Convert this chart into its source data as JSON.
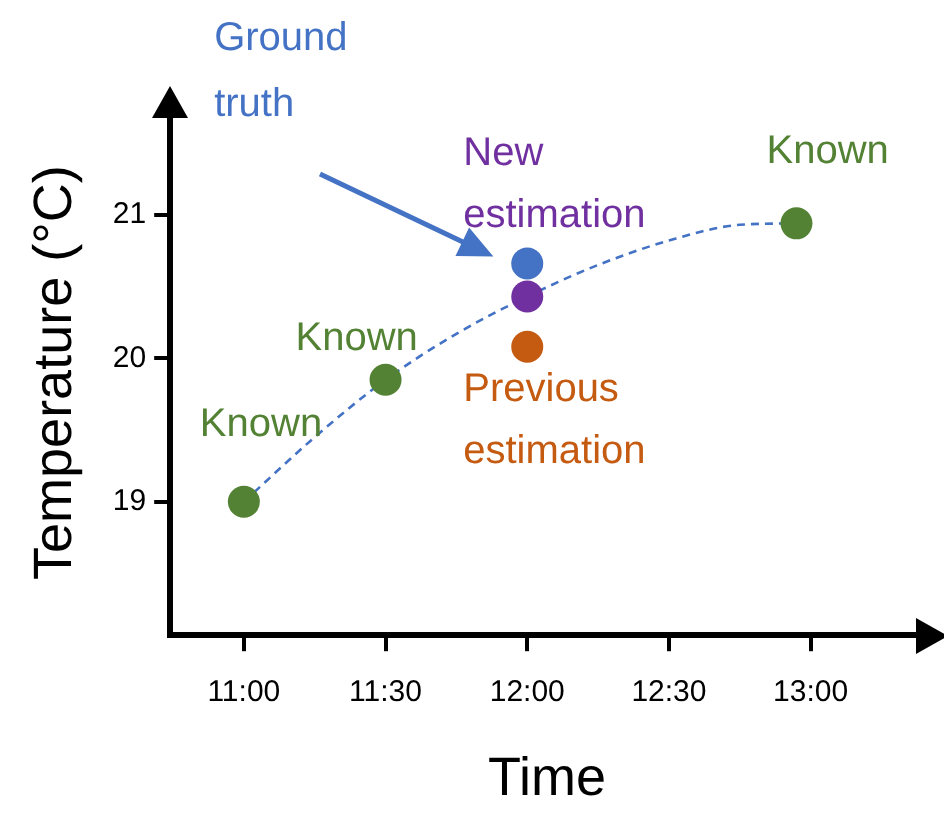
{
  "chart_data": {
    "type": "scatter",
    "xlabel": "Time",
    "ylabel": "Temperature (°C)",
    "xlim": [
      10.74,
      13.4
    ],
    "xticks": [
      {
        "value": 11,
        "label": "11:00"
      },
      {
        "value": 11.5,
        "label": "11:30"
      },
      {
        "value": 12,
        "label": "12:00"
      },
      {
        "value": 12.5,
        "label": "12:30"
      },
      {
        "value": 13,
        "label": "13:00"
      }
    ],
    "ylim": [
      18.07,
      21.73
    ],
    "yticks": [
      19,
      20,
      21
    ],
    "grid": false,
    "legend": false,
    "series": [
      {
        "type": "line",
        "color": "#4472c4",
        "line_style": "dashed",
        "marker": "none",
        "x": [
          11,
          11.25,
          11.5,
          11.75,
          12,
          12.25,
          12.5,
          12.75,
          12.95
        ],
        "values": [
          19,
          19.45,
          19.85,
          20.17,
          20.43,
          20.65,
          20.82,
          20.93,
          20.94
        ]
      },
      {
        "type": "scatter",
        "color": "#548235",
        "marker": "circle",
        "x": [
          11,
          11.5,
          12.95
        ],
        "values": [
          19,
          19.85,
          20.94
        ]
      },
      {
        "type": "scatter",
        "color": "#4472c4",
        "marker": "circle",
        "x": [
          12
        ],
        "values": [
          20.66
        ]
      },
      {
        "type": "scatter",
        "color": "#7030a0",
        "marker": "circle",
        "x": [
          12
        ],
        "values": [
          20.43
        ]
      },
      {
        "type": "scatter",
        "color": "#c55a11",
        "marker": "circle",
        "x": [
          12
        ],
        "values": [
          20.08
        ]
      }
    ],
    "annotations": [
      {
        "text": "Known",
        "x": 11,
        "y": 19
      },
      {
        "text": "Known",
        "x": 11.5,
        "y": 19.85
      },
      {
        "text": "Known",
        "x": 12.95,
        "y": 20.94
      },
      "Ground truth",
      {
        "text": "New estimation",
        "x": 12,
        "y": 20.43
      },
      {
        "text": "Previous estimation",
        "x": 12,
        "y": 20.08
      }
    ]
  }
}
